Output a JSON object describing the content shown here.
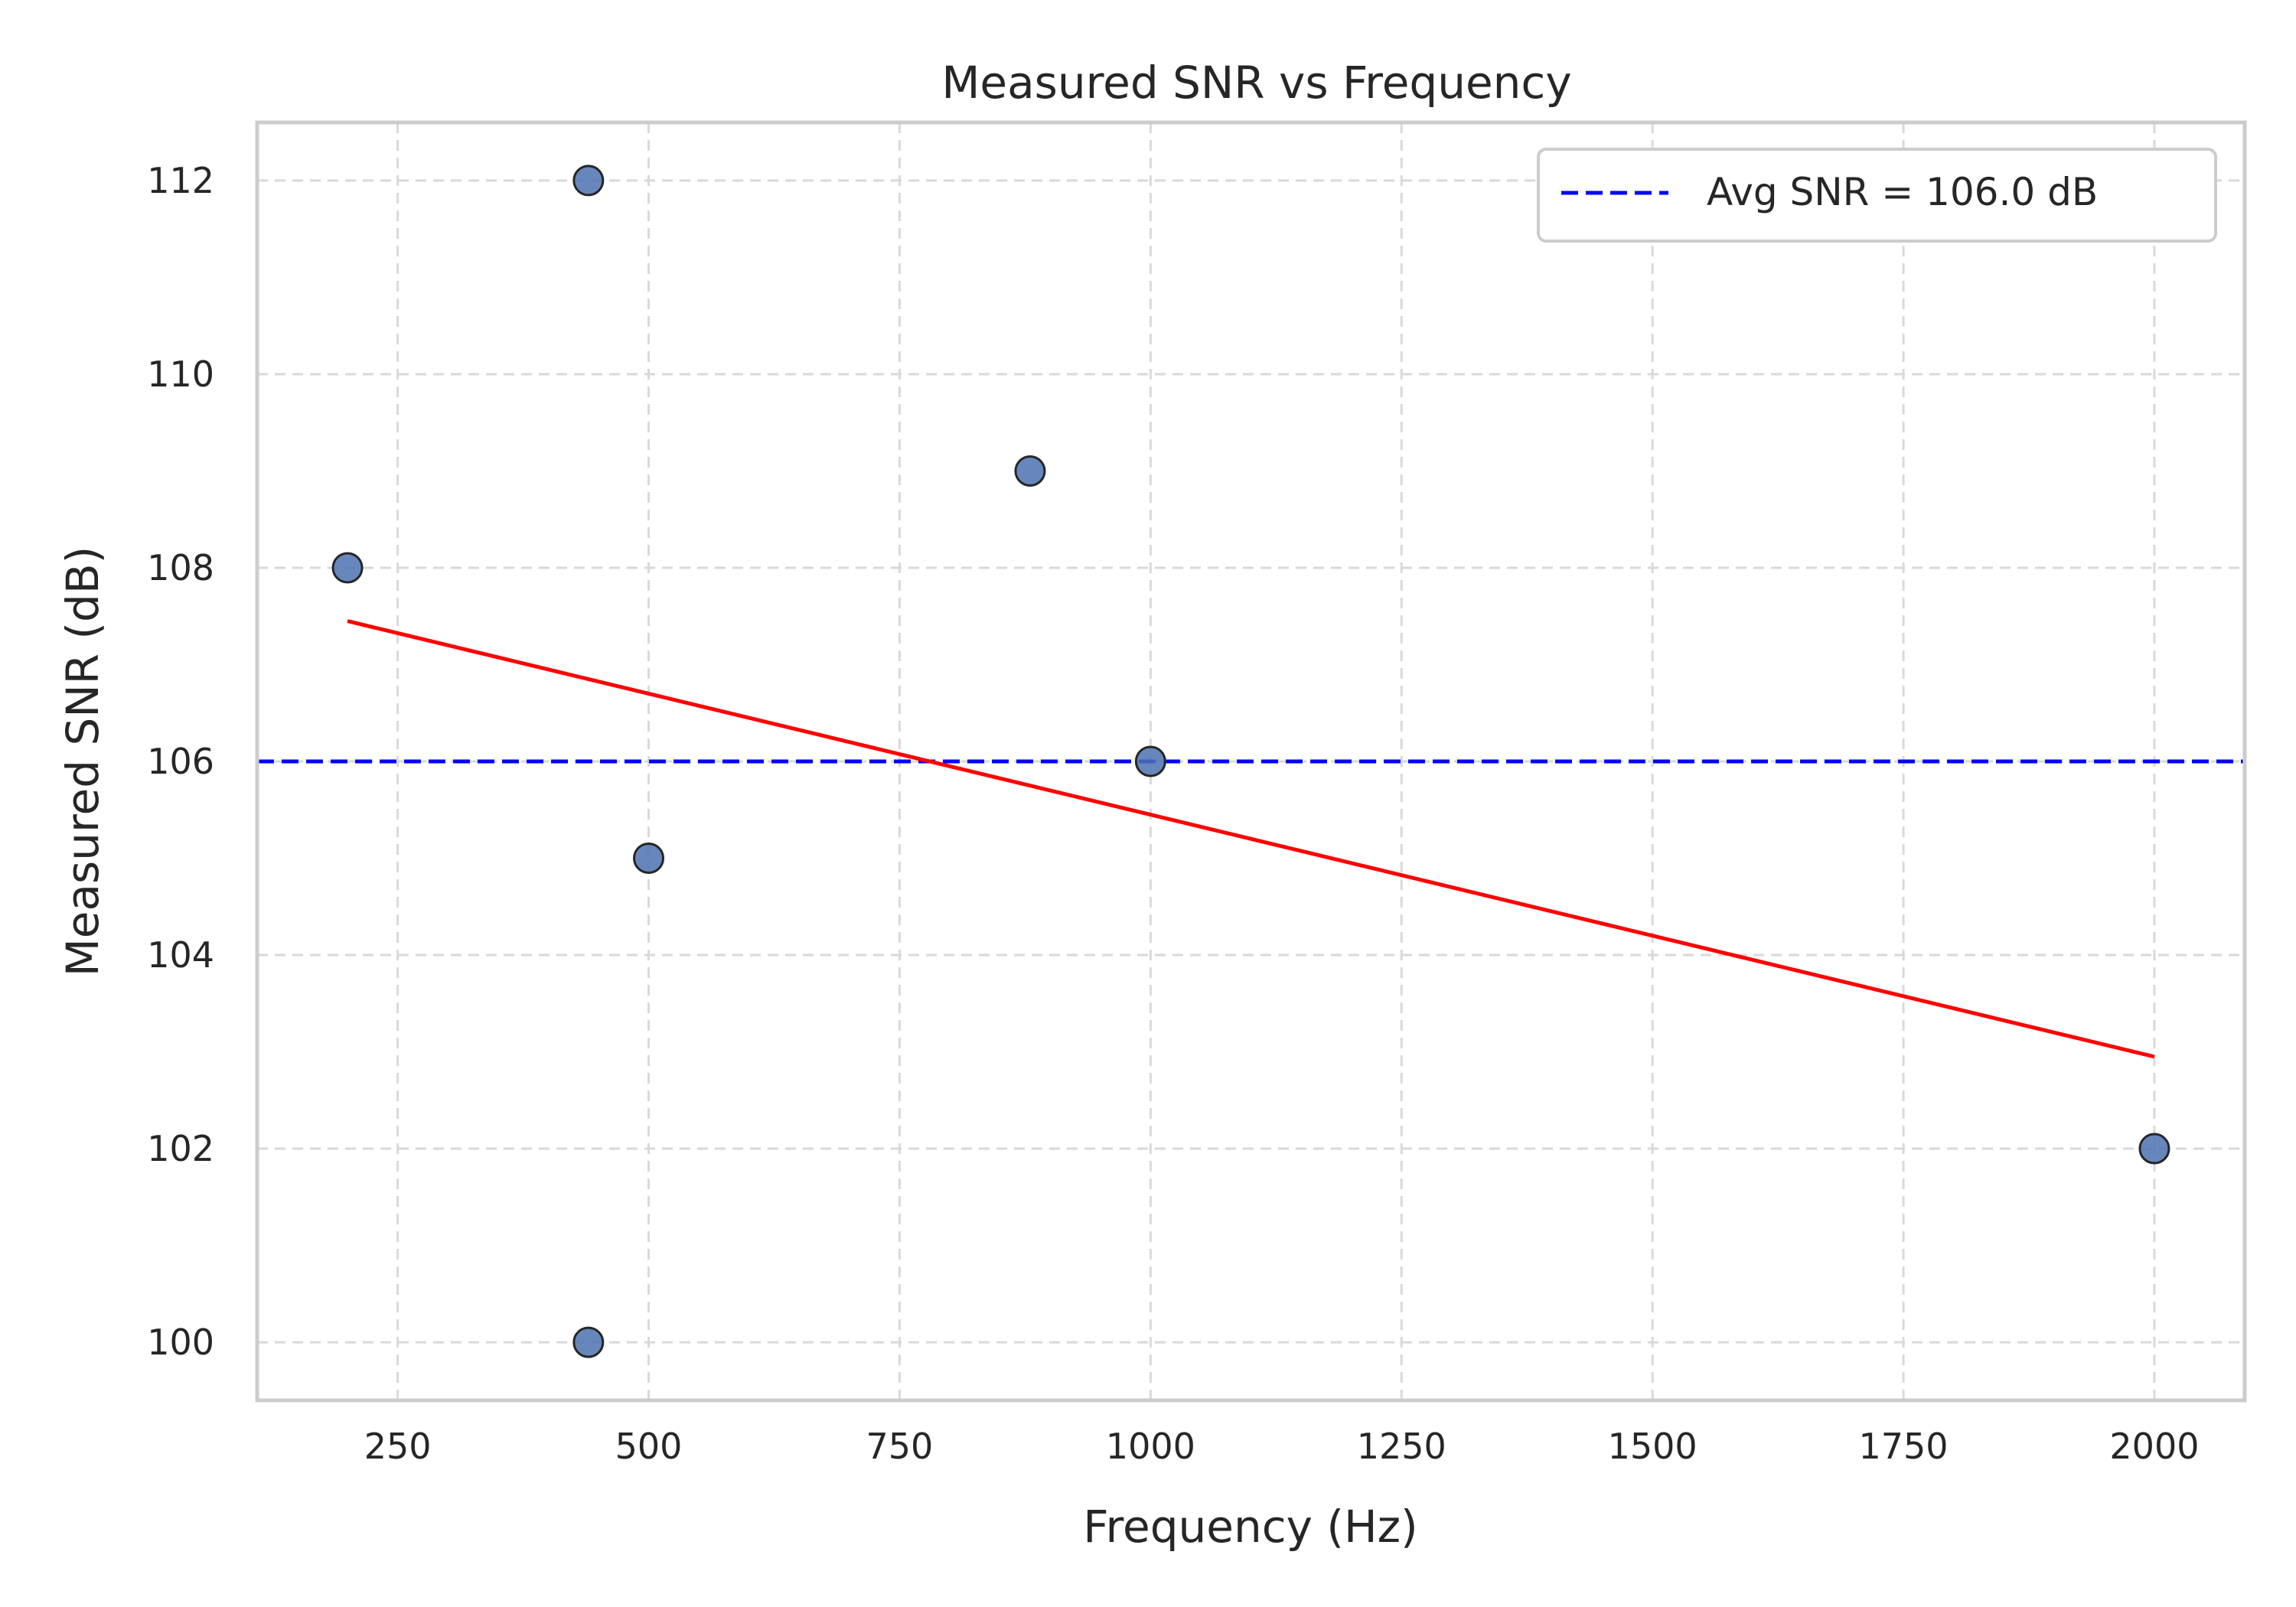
{
  "chart_data": {
    "type": "scatter",
    "title": "Measured SNR vs Frequency",
    "xlabel": "Frequency (Hz)",
    "ylabel": "Measured SNR (dB)",
    "xlim": [
      110,
      2090
    ],
    "ylim": [
      99.4,
      112.6
    ],
    "xticks": [
      250,
      500,
      750,
      1000,
      1250,
      1500,
      1750,
      2000
    ],
    "yticks": [
      100,
      102,
      104,
      106,
      108,
      110,
      112
    ],
    "grid": true,
    "legend_position": "top-right",
    "points": [
      {
        "x": 200,
        "y": 108
      },
      {
        "x": 440,
        "y": 112
      },
      {
        "x": 440,
        "y": 100
      },
      {
        "x": 500,
        "y": 105
      },
      {
        "x": 880,
        "y": 109
      },
      {
        "x": 1000,
        "y": 106
      },
      {
        "x": 2000,
        "y": 102
      }
    ],
    "trend_line": {
      "x": [
        200,
        2000
      ],
      "y": [
        107.45,
        102.95
      ]
    },
    "reference_line": {
      "y": 106.0,
      "label": "Avg SNR = 106.0 dB"
    },
    "colors": {
      "points": "#4c72b0",
      "point_edge": "#262626",
      "trend": "#ff0000",
      "reference": "#0000ff",
      "grid": "#d9d9d9",
      "frame": "#cccccc"
    }
  }
}
